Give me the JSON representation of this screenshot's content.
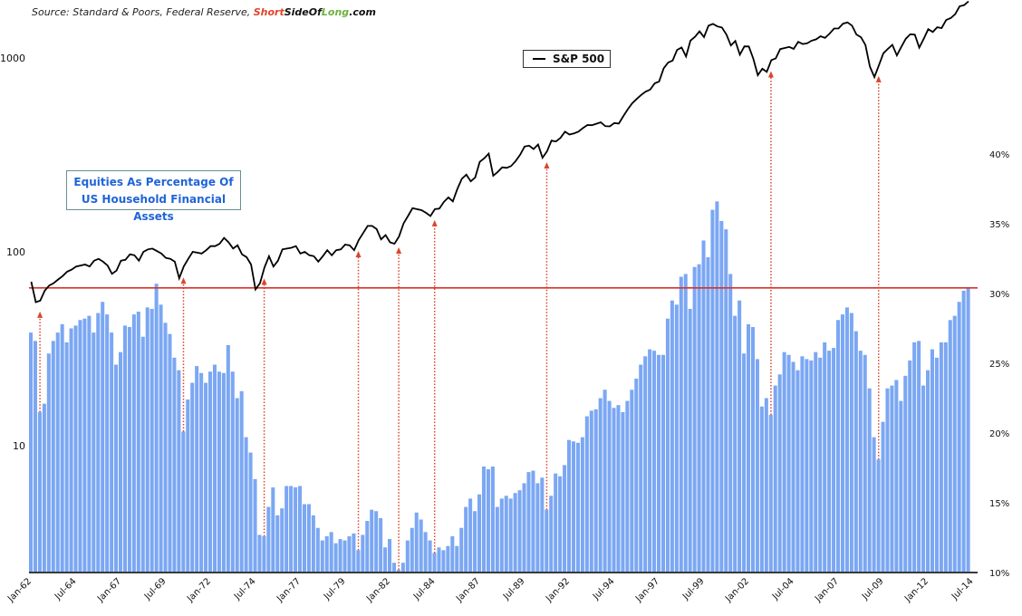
{
  "source": {
    "prefix": "Source: Standard & Poors, Federal Reserve, ",
    "brand_short": "Short",
    "brand_side": "SideOf",
    "brand_long": "Long",
    "brand_com": ".com"
  },
  "chart_data": {
    "type": "bar+line",
    "title": "Equities As Percentage Of US Household Financial Assets",
    "frequency": "quarterly",
    "start": "1962Q1",
    "left_axis": {
      "scale": "log",
      "ticks": [
        "1000",
        "100",
        "10"
      ],
      "range": [
        2.2,
        2000
      ]
    },
    "right_axis": {
      "scale": "linear",
      "ticks": [
        "40%",
        "35%",
        "30%",
        "25%",
        "20%",
        "15%",
        "10%"
      ],
      "range": [
        10,
        41.5
      ]
    },
    "x_ticks": [
      "Jan-62",
      "Jul-64",
      "Jan-67",
      "Jul-69",
      "Jan-72",
      "Jul-74",
      "Jan-77",
      "Jul-79",
      "Jan-82",
      "Jul-84",
      "Jan-87",
      "Jul-89",
      "Jan-92",
      "Jul-94",
      "Jan-97",
      "Jul-99",
      "Jan-02",
      "Jul-04",
      "Jan-07",
      "Jul-09",
      "Jan-12",
      "Jul-14"
    ],
    "grid": false,
    "legend": {
      "position": "top-center",
      "entries": [
        "S&P 500"
      ]
    },
    "series": [
      {
        "name": "S&P 500",
        "kind": "line",
        "axis": "left",
        "color": "#000000",
        "values": [
          70,
          55,
          56,
          63,
          67,
          69,
          72,
          75,
          79,
          81,
          84,
          85,
          86,
          84,
          90,
          92,
          89,
          85,
          77,
          80,
          90,
          91,
          97,
          96,
          90,
          100,
          103,
          104,
          101,
          98,
          93,
          92,
          89,
          73,
          84,
          92,
          100,
          99,
          98,
          102,
          107,
          107,
          110,
          118,
          112,
          104,
          108,
          97,
          94,
          86,
          64,
          69,
          83,
          95,
          84,
          90,
          103,
          104,
          105,
          107,
          98,
          100,
          96,
          95,
          89,
          95,
          102,
          96,
          102,
          103,
          109,
          108,
          102,
          115,
          125,
          136,
          136,
          131,
          116,
          122,
          112,
          110,
          120,
          140,
          153,
          168,
          166,
          164,
          159,
          153,
          166,
          167,
          181,
          191,
          182,
          211,
          238,
          250,
          231,
          242,
          291,
          304,
          321,
          247,
          258,
          273,
          271,
          277,
          294,
          317,
          349,
          353,
          339,
          358,
          306,
          330,
          375,
          371,
          387,
          417,
          403,
          408,
          417,
          435,
          451,
          450,
          458,
          466,
          445,
          444,
          462,
          459,
          500,
          544,
          584,
          615,
          645,
          670,
          687,
          740,
          757,
          885,
          947,
          970,
          1101,
          1133,
          1017,
          1229,
          1286,
          1372,
          1282,
          1469,
          1498,
          1454,
          1436,
          1320,
          1160,
          1224,
          1040,
          1148,
          1147,
          989,
          815,
          880,
          848,
          974,
          996,
          1111,
          1126,
          1140,
          1114,
          1211,
          1180,
          1191,
          1228,
          1248,
          1294,
          1270,
          1335,
          1418,
          1420,
          1503,
          1526,
          1468,
          1322,
          1280,
          1166,
          903,
          797,
          919,
          1057,
          1115,
          1169,
          1031,
          1141,
          1257,
          1325,
          1320,
          1131,
          1257,
          1408,
          1362,
          1440,
          1426,
          1569,
          1606,
          1681,
          1848,
          1872,
          1960
        ]
      },
      {
        "name": "Equities % of household financial assets",
        "kind": "bar",
        "axis": "right",
        "color": "#7ba7f3",
        "values": [
          27.2,
          26.6,
          21.5,
          22.1,
          25.7,
          26.6,
          27.2,
          27.8,
          26.5,
          27.5,
          27.7,
          28.1,
          28.2,
          28.4,
          27.2,
          28.6,
          29.4,
          28.5,
          27.2,
          24.9,
          25.8,
          27.7,
          27.6,
          28.5,
          28.7,
          26.9,
          29.0,
          28.9,
          30.7,
          29.2,
          27.9,
          27.1,
          25.4,
          24.5,
          20.1,
          22.4,
          23.6,
          24.8,
          24.3,
          23.6,
          24.4,
          24.9,
          24.4,
          24.3,
          26.3,
          24.4,
          22.5,
          23.0,
          19.7,
          18.6,
          16.7,
          12.7,
          12.6,
          14.7,
          16.1,
          14.1,
          14.6,
          16.2,
          16.2,
          16.1,
          16.2,
          14.9,
          14.9,
          14.1,
          13.2,
          12.3,
          12.6,
          12.9,
          12.1,
          12.4,
          12.3,
          12.6,
          12.8,
          11.6,
          12.7,
          13.7,
          14.5,
          14.4,
          13.9,
          11.8,
          12.4,
          10.7,
          10.2,
          10.7,
          12.3,
          13.2,
          14.3,
          13.8,
          12.9,
          12.3,
          11.4,
          11.8,
          11.6,
          11.9,
          12.6,
          11.9,
          13.2,
          14.7,
          15.3,
          14.4,
          15.6,
          17.6,
          17.4,
          17.6,
          14.7,
          15.3,
          15.5,
          15.3,
          15.7,
          15.9,
          16.4,
          17.2,
          17.3,
          16.4,
          16.8,
          14.5,
          15.5,
          17.1,
          16.9,
          17.7,
          19.5,
          19.4,
          19.3,
          19.7,
          21.2,
          21.6,
          21.7,
          22.5,
          23.1,
          22.3,
          21.8,
          22.0,
          21.5,
          22.3,
          23.1,
          23.9,
          24.9,
          25.5,
          26.0,
          25.9,
          25.6,
          25.6,
          28.2,
          29.5,
          29.2,
          31.2,
          31.4,
          28.9,
          31.9,
          32.1,
          33.8,
          32.6,
          36.0,
          36.6,
          35.2,
          34.6,
          31.4,
          28.4,
          29.5,
          25.7,
          27.8,
          27.6,
          25.3,
          21.9,
          22.5,
          21.3,
          23.4,
          24.2,
          25.8,
          25.6,
          25.1,
          24.5,
          25.5,
          25.3,
          25.2,
          25.8,
          25.4,
          26.5,
          25.9,
          26.1,
          28.1,
          28.5,
          29.0,
          28.6,
          27.3,
          25.9,
          25.6,
          23.2,
          19.7,
          18.1,
          20.8,
          23.2,
          23.4,
          23.8,
          22.3,
          24.1,
          25.2,
          26.5,
          26.6,
          23.4,
          24.5,
          26.0,
          25.4,
          26.5,
          26.5,
          28.1,
          28.4,
          29.4,
          30.2,
          30.4
        ]
      }
    ],
    "reference_line": {
      "axis": "right",
      "value": 30.4,
      "color": "#d9302c"
    },
    "arrows": {
      "color": "#d9452c",
      "style": "dotted",
      "quarters": [
        "1962Q3",
        "1970Q3",
        "1975Q1",
        "1980Q2",
        "1982Q3",
        "1984Q3",
        "1990Q4",
        "2003Q2",
        "2009Q2"
      ]
    }
  }
}
